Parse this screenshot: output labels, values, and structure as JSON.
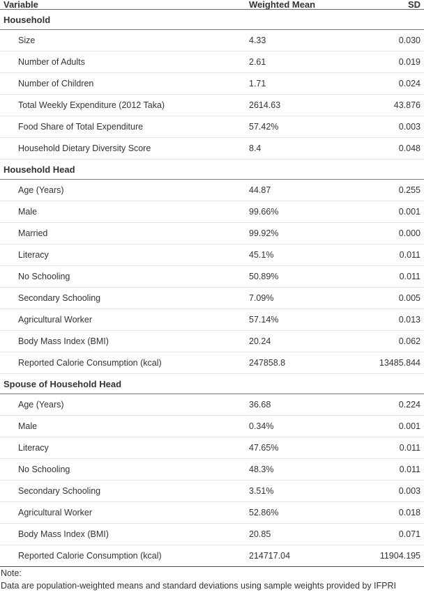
{
  "header": {
    "variable": "Variable",
    "mean": "Weighted Mean",
    "sd": "SD"
  },
  "groups": [
    {
      "title": "Household",
      "rows": [
        {
          "label": "Size",
          "mean": "4.33",
          "sd": "0.030"
        },
        {
          "label": "Number of Adults",
          "mean": "2.61",
          "sd": "0.019"
        },
        {
          "label": "Number of Children",
          "mean": "1.71",
          "sd": "0.024"
        },
        {
          "label": "Total Weekly Expenditure (2012 Taka)",
          "mean": "2614.63",
          "sd": "43.876"
        },
        {
          "label": "Food Share of Total Expenditure",
          "mean": "57.42%",
          "sd": "0.003"
        },
        {
          "label": "Household Dietary Diversity Score",
          "mean": "8.4",
          "sd": "0.048"
        }
      ]
    },
    {
      "title": "Household Head",
      "rows": [
        {
          "label": "Age (Years)",
          "mean": "44.87",
          "sd": "0.255"
        },
        {
          "label": "Male",
          "mean": "99.66%",
          "sd": "0.001"
        },
        {
          "label": "Married",
          "mean": "99.92%",
          "sd": "0.000"
        },
        {
          "label": "Literacy",
          "mean": "45.1%",
          "sd": "0.011"
        },
        {
          "label": "No Schooling",
          "mean": "50.89%",
          "sd": "0.011"
        },
        {
          "label": "Secondary Schooling",
          "mean": "7.09%",
          "sd": "0.005"
        },
        {
          "label": "Agricultural Worker",
          "mean": "57.14%",
          "sd": "0.013"
        },
        {
          "label": "Body Mass Index (BMI)",
          "mean": "20.24",
          "sd": "0.062"
        },
        {
          "label": "Reported Calorie Consumption (kcal)",
          "mean": "247858.8",
          "sd": "13485.844"
        }
      ]
    },
    {
      "title": "Spouse of Household Head",
      "rows": [
        {
          "label": "Age (Years)",
          "mean": "36.68",
          "sd": "0.224"
        },
        {
          "label": "Male",
          "mean": "0.34%",
          "sd": "0.001"
        },
        {
          "label": "Literacy",
          "mean": "47.65%",
          "sd": "0.011"
        },
        {
          "label": "No Schooling",
          "mean": "48.3%",
          "sd": "0.011"
        },
        {
          "label": "Secondary Schooling",
          "mean": "3.51%",
          "sd": "0.003"
        },
        {
          "label": "Agricultural Worker",
          "mean": "52.86%",
          "sd": "0.018"
        },
        {
          "label": "Body Mass Index (BMI)",
          "mean": "20.85",
          "sd": "0.071"
        },
        {
          "label": "Reported Calorie Consumption (kcal)",
          "mean": "214717.04",
          "sd": "11904.195"
        }
      ]
    }
  ],
  "note": {
    "label": "Note:",
    "text": "Data are population-weighted means and standard deviations using sample weights provided by IFPRI"
  }
}
